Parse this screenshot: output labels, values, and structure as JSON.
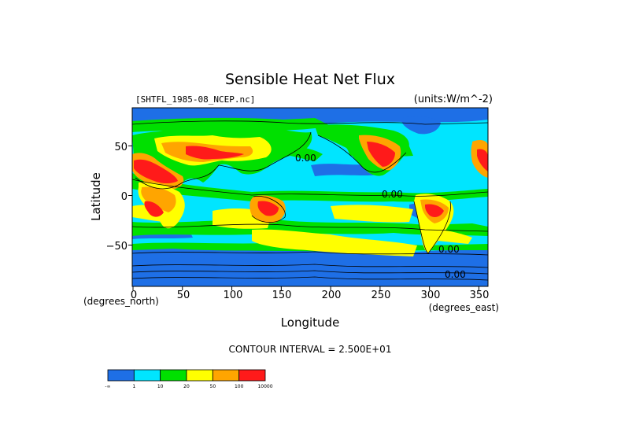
{
  "chart_data": {
    "type": "heatmap",
    "title": "Sensible Heat Net Flux",
    "subtitle": "[SHTFL_1985-08_NCEP.nc]",
    "units_label": "(units:W/m^-2)",
    "xlabel": "Longitude",
    "ylabel": "Latitude",
    "x_unit_label": "(degrees_east)",
    "y_unit_label": "(degrees_north)",
    "xlim": [
      0,
      360
    ],
    "ylim": [
      -90,
      90
    ],
    "x_ticks": [
      "0",
      "50",
      "100",
      "150",
      "200",
      "250",
      "300",
      "350"
    ],
    "y_ticks": [
      "50",
      "0",
      "−50"
    ],
    "contour_labels": [
      "0.00",
      "0.00",
      "0.00",
      "0.00"
    ],
    "contour_interval_text": "CONTOUR INTERVAL = 2.500E+01",
    "colorbar": {
      "colors": [
        "#1e6fe6",
        "#00e5ff",
        "#00e000",
        "#ffff00",
        "#ffa500",
        "#ff1a1a"
      ],
      "labels": [
        "-∞",
        "1",
        "10",
        "20",
        "50",
        "100",
        "10000"
      ]
    }
  }
}
